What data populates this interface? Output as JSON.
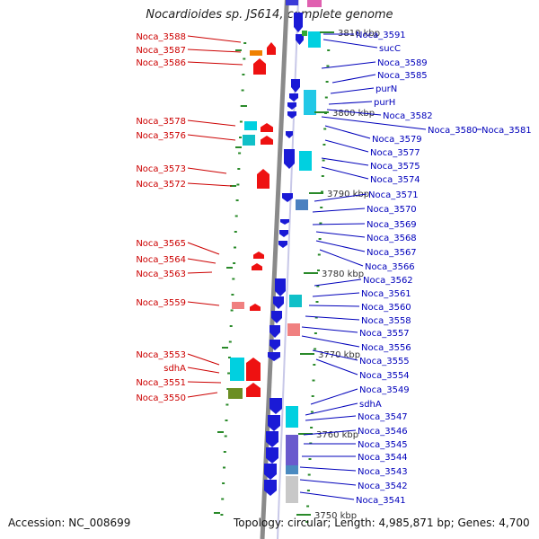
{
  "title": "Nocardioides sp. JS614, complete genome",
  "footer": {
    "accession": "Accession: NC_008699",
    "topology": "Topology: circular; Length: 4,985,871 bp; Genes: 4,700"
  },
  "colors": {
    "left_labels": "#cc0000",
    "right_labels": "#0000bb",
    "backbone": "#8a8a8a",
    "minus_strand": "#1a1ad6",
    "plus_strand": "#ee1111",
    "tick": "#2a8a2a"
  },
  "scale_ticks": [
    "3810 kbp",
    "3800 kbp",
    "3790 kbp",
    "3780 kbp",
    "3770 kbp",
    "3760 kbp",
    "3750 kbp"
  ],
  "left_labels": [
    "Noca_3588",
    "Noca_3587",
    "Noca_3586",
    "Noca_3578",
    "Noca_3576",
    "Noca_3573",
    "Noca_3572",
    "Noca_3565",
    "Noca_3564",
    "Noca_3563",
    "Noca_3559",
    "Noca_3553",
    "sdhA",
    "Noca_3551",
    "Noca_3550"
  ],
  "right_labels": [
    "Noca_3591",
    "sucC",
    "Noca_3589",
    "Noca_3585",
    "purN",
    "purH",
    "Noca_3582",
    "Noca_3580",
    "Noca_3581",
    "Noca_3579",
    "Noca_3577",
    "Noca_3575",
    "Noca_3574",
    "Noca_3571",
    "Noca_3570",
    "Noca_3569",
    "Noca_3568",
    "Noca_3567",
    "Noca_3566",
    "Noca_3562",
    "Noca_3561",
    "Noca_3560",
    "Noca_3558",
    "Noca_3557",
    "Noca_3556",
    "Noca_3555",
    "Noca_3554",
    "Noca_3549",
    "sdhA",
    "Noca_3547",
    "Noca_3546",
    "Noca_3545",
    "Noca_3544",
    "Noca_3543",
    "Noca_3542",
    "Noca_3541"
  ]
}
